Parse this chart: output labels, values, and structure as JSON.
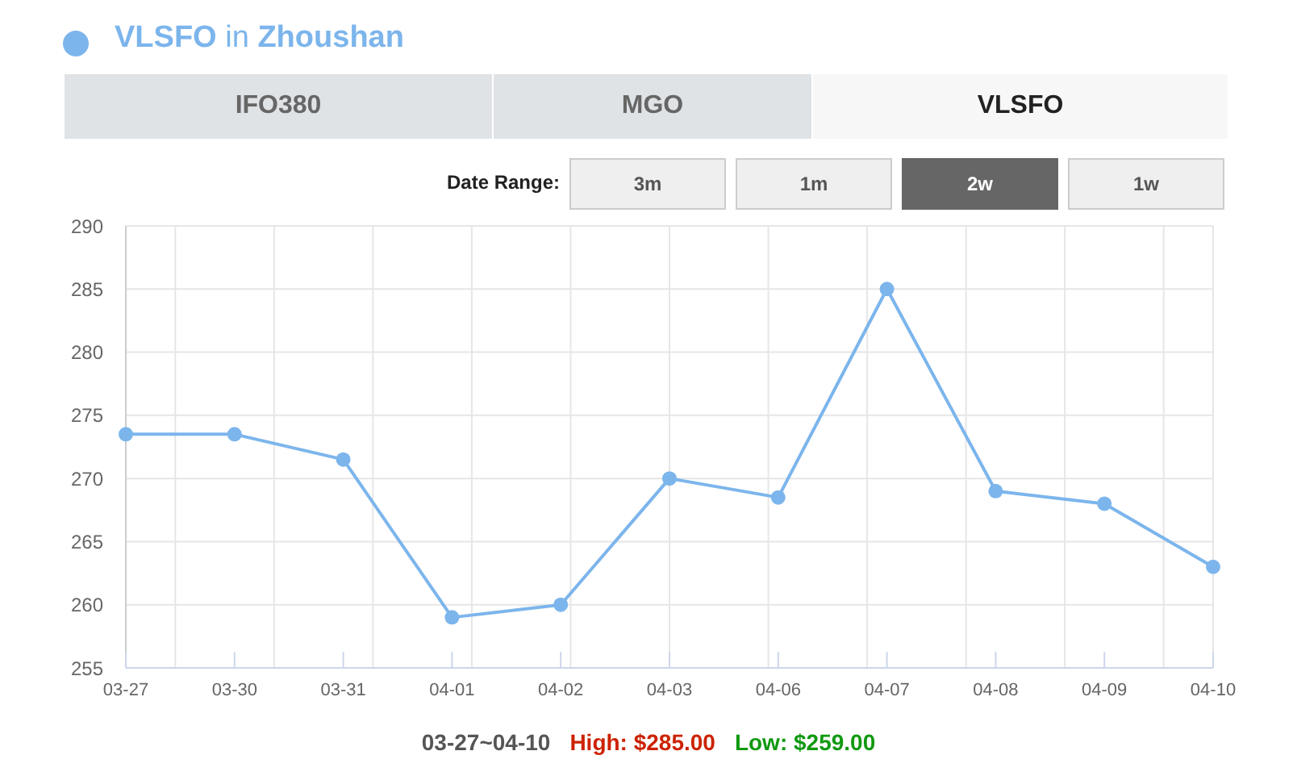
{
  "chart_data": {
    "type": "line",
    "title": "VLSFO in Zhoushan",
    "categories": [
      "03-27",
      "03-30",
      "03-31",
      "04-01",
      "04-02",
      "04-03",
      "04-06",
      "04-07",
      "04-08",
      "04-09",
      "04-10"
    ],
    "values": [
      273.5,
      273.5,
      271.5,
      259,
      260,
      270,
      268.5,
      285,
      269,
      268,
      263
    ],
    "color": "#7cb5ec",
    "ylim": [
      255,
      290
    ],
    "yticks": [
      255,
      260,
      265,
      270,
      275,
      280,
      285,
      290
    ],
    "grid": true,
    "marker": "circle",
    "line_style": "solid",
    "annotations": [
      "IFO380",
      "MGO",
      "VLSFO",
      "Date Range:",
      "3m",
      "1m",
      "2w",
      "1w",
      "03-27~04-10",
      "High: $285.00",
      "Low: $259.00"
    ]
  }
}
